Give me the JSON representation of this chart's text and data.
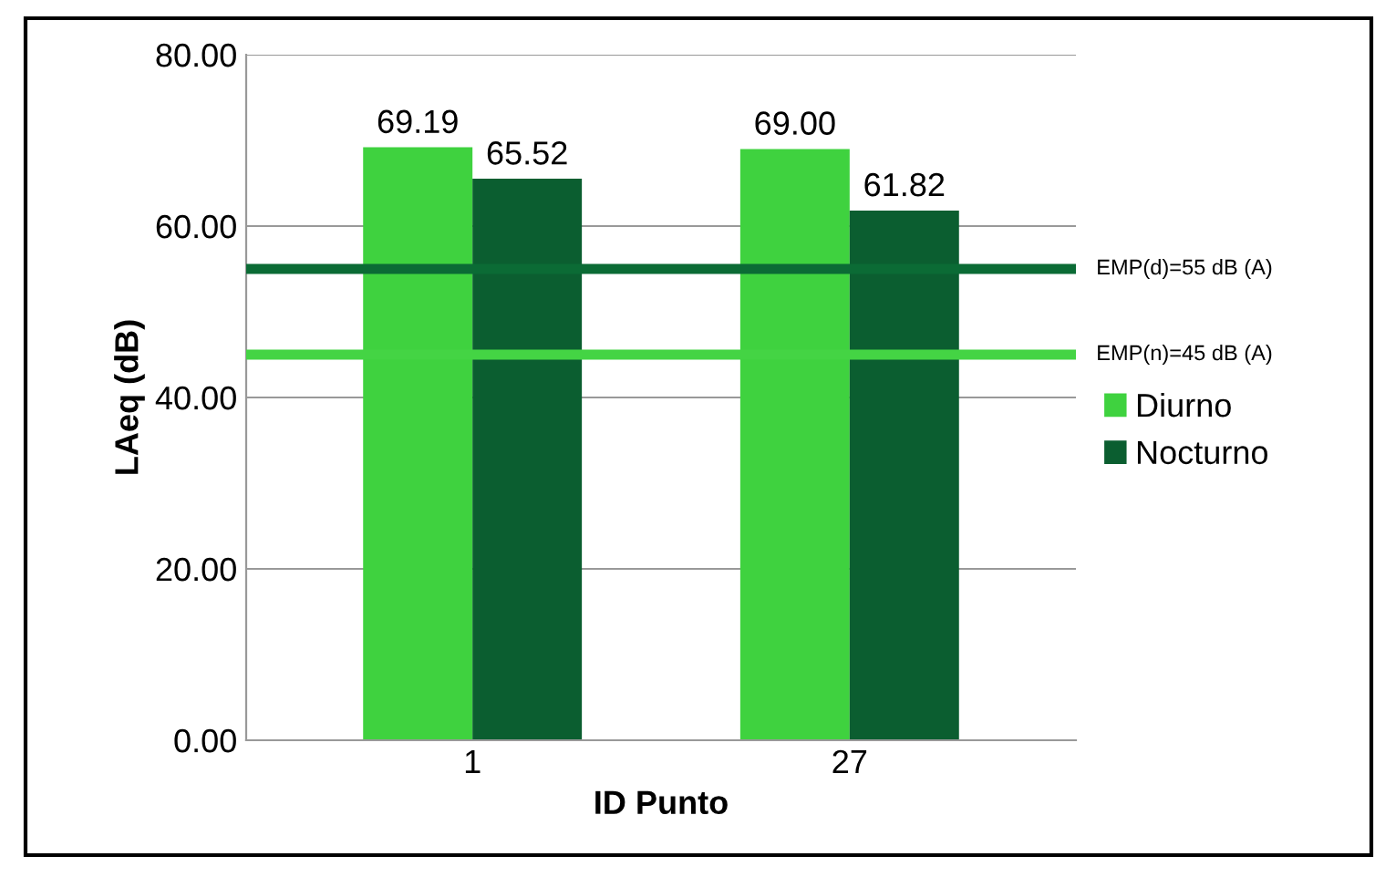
{
  "chart_data": {
    "type": "bar",
    "xlabel": "ID Punto",
    "ylabel": "LAeq (dB)",
    "categories": [
      "1",
      "27"
    ],
    "series": [
      {
        "name": "Diurno",
        "color": "#3fd23f",
        "values": [
          69.19,
          69.0
        ],
        "value_labels": [
          "69.19",
          "69.00"
        ]
      },
      {
        "name": "Nocturno",
        "color": "#0b5e30",
        "values": [
          65.52,
          61.82
        ],
        "value_labels": [
          "65.52",
          "61.82"
        ]
      }
    ],
    "ylim": [
      0,
      80
    ],
    "yticks": [
      {
        "value": 0,
        "label": "0.00"
      },
      {
        "value": 20,
        "label": "20.00"
      },
      {
        "value": 40,
        "label": "40.00"
      },
      {
        "value": 60,
        "label": "60.00"
      },
      {
        "value": 80,
        "label": "80.00"
      }
    ],
    "ref_lines": [
      {
        "axis": "y",
        "value": 55,
        "label": "EMP(d)=55 dB (A)",
        "color": "#0b6b35"
      },
      {
        "axis": "y",
        "value": 45,
        "label": "EMP(n)=45 dB (A)",
        "color": "#44d444"
      }
    ],
    "grid": "y",
    "legend": "right"
  }
}
